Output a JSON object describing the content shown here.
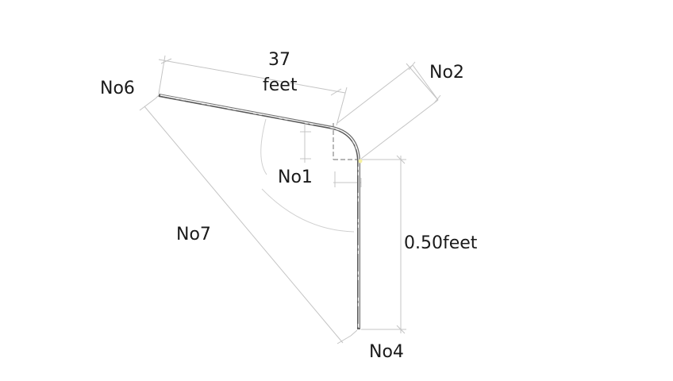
{
  "labels": {
    "flange_length_value": "37",
    "flange_length_unit": "feet",
    "no2": "No2",
    "no6": "No6",
    "no1": "No1",
    "no7": "No7",
    "height": "0.50feet",
    "no4": "No4"
  },
  "colors": {
    "dimension": "#c4c4c4",
    "part": "#6e6e6e",
    "text": "#1a1a1a",
    "point": "#f5f0a0"
  }
}
